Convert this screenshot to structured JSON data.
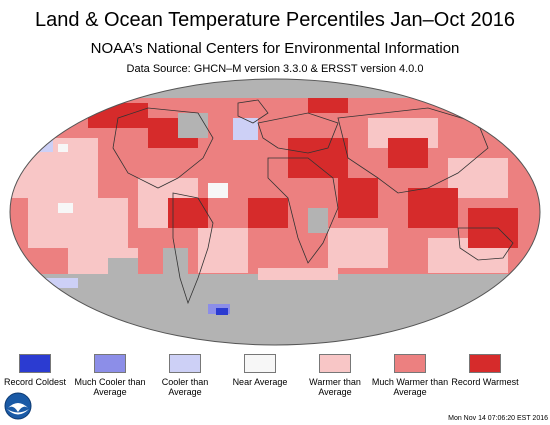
{
  "title": "Land & Ocean Temperature Percentiles Jan–Oct 2016",
  "subtitle": "NOAA’s National Centers for Environmental Information",
  "source": "Data Source: GHCN–M version 3.3.0 & ERSST version 4.0.0",
  "legend": [
    {
      "label": "Record Coldest",
      "color": "#2b3bd1"
    },
    {
      "label": "Much Cooler than Average",
      "color": "#8c8ee8"
    },
    {
      "label": "Cooler than Average",
      "color": "#cdd0f6"
    },
    {
      "label": "Near Average",
      "color": "#f7f7f7"
    },
    {
      "label": "Warmer than Average",
      "color": "#f8c6c6"
    },
    {
      "label": "Much Warmer than Average",
      "color": "#ec8080"
    },
    {
      "label": "Record Warmest",
      "color": "#d62b2b"
    }
  ],
  "colors": {
    "no_data": "#b3b3b3",
    "land_outline": "#333333",
    "logo_blue": "#1a5aa6"
  },
  "logo": "noaa-logo",
  "timestamp": "Mon Nov 14 07:06:20 EST 2016"
}
